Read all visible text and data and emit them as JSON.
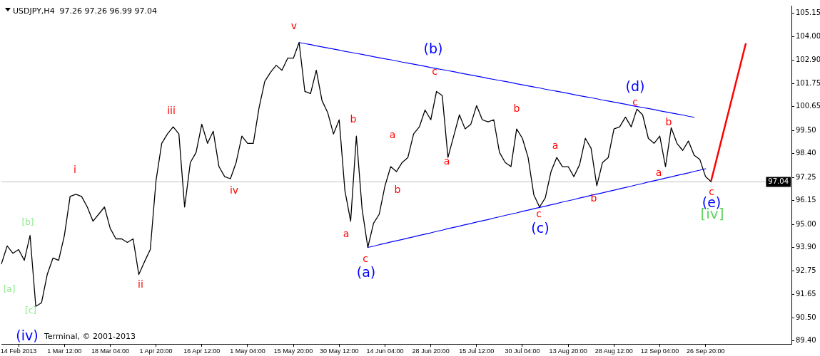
{
  "chart_data": {
    "type": "line",
    "title": "USDJPY,H4  97.26 97.26 96.99 97.04",
    "categories": [
      null,
      null,
      null,
      "14 Feb 2013",
      null,
      null,
      null,
      null,
      null,
      null,
      null,
      "1 Mar 12:00",
      null,
      null,
      null,
      null,
      null,
      null,
      null,
      "18 Mar 04:00",
      null,
      null,
      null,
      null,
      null,
      null,
      null,
      "1 Apr 20:00",
      null,
      null,
      null,
      null,
      null,
      null,
      null,
      "16 Apr 12:00",
      null,
      null,
      null,
      null,
      null,
      null,
      null,
      "1 May 04:00",
      null,
      null,
      null,
      null,
      null,
      null,
      null,
      "15 May 20:00",
      null,
      null,
      null,
      null,
      null,
      null,
      null,
      "30 May 12:00",
      null,
      null,
      null,
      null,
      null,
      null,
      null,
      "14 Jun 04:00",
      null,
      null,
      null,
      null,
      null,
      null,
      null,
      "28 Jun 20:00",
      null,
      null,
      null,
      null,
      null,
      null,
      null,
      "15 Jul 12:00",
      null,
      null,
      null,
      null,
      null,
      null,
      null,
      "30 Jul 04:00",
      null,
      null,
      null,
      null,
      null,
      null,
      null,
      "13 Aug 20:00",
      null,
      null,
      null,
      null,
      null,
      null,
      null,
      "28 Aug 12:00",
      null,
      null,
      null,
      null,
      null,
      null,
      null,
      "12 Sep 04:00",
      null,
      null,
      null,
      null,
      null,
      null,
      null,
      "26 Sep 20:00",
      null,
      null,
      null,
      null,
      null,
      null,
      null,
      null,
      null,
      null,
      null,
      null,
      null,
      null,
      null
    ],
    "ylim": [
      89.25,
      105.5
    ],
    "yticks": [
      {
        "value": 89.4,
        "label": "89.40"
      },
      {
        "value": 90.5,
        "label": "90.50"
      },
      91.65,
      92.75,
      {
        "value": 93.9,
        "label": "93.90"
      },
      {
        "value": 95,
        "label": "95.00"
      },
      96.15,
      97.25,
      {
        "value": 98.4,
        "label": "98.40"
      },
      {
        "value": 99.5,
        "label": "99.50"
      },
      100.65,
      101.75,
      {
        "value": 102.9,
        "label": "102.90"
      },
      {
        "value": 104,
        "label": "104.00"
      },
      105.15
    ],
    "grid": false,
    "legend": false,
    "marker": "none",
    "line_style": "solid",
    "ref_lines": [
      {
        "axis": "y",
        "value": 97.04,
        "label": "97.04",
        "color": "#c0c0c0"
      }
    ],
    "series": [
      {
        "color": "#000000",
        "values": [
          93.1,
          93.96,
          93.61,
          93.79,
          93.27,
          94.47,
          91.06,
          91.23,
          92.59,
          93.38,
          93.27,
          94.47,
          96.34,
          96.44,
          96.34,
          95.83,
          95.15,
          95.49,
          95.83,
          94.81,
          94.3,
          94.3,
          94.13,
          94.3,
          92.59,
          93.21,
          93.79,
          97.09,
          98.89,
          99.34,
          99.68,
          99.34,
          95.83,
          97.97,
          98.45,
          99.81,
          98.89,
          99.47,
          97.77,
          97.29,
          97.19,
          97.97,
          99.24,
          98.89,
          98.89,
          100.6,
          101.86,
          102.3,
          102.64,
          102.4,
          102.98,
          102.98,
          103.73,
          101.38,
          101.28,
          102.4,
          100.94,
          100.36,
          99.34,
          100.02,
          96.61,
          95.15,
          99.24,
          95.73,
          93.89,
          95.05,
          95.49,
          96.85,
          97.77,
          97.53,
          97.97,
          98.21,
          99.34,
          99.68,
          100.49,
          100.02,
          101.38,
          101.18,
          98.21,
          99.24,
          100.26,
          99.58,
          99.81,
          100.7,
          100.02,
          99.92,
          100.02,
          98.45,
          97.97,
          97.77,
          99.58,
          99.13,
          98.21,
          96.41,
          95.83,
          96.27,
          97.53,
          98.21,
          97.77,
          97.77,
          97.29,
          97.87,
          99.13,
          98.65,
          96.85,
          97.97,
          98.21,
          99.58,
          99.68,
          100.15,
          99.68,
          100.53,
          100.26,
          99.13,
          98.89,
          99.24,
          97.77,
          99.64,
          98.89,
          98.55,
          99.0,
          98.32,
          98.11,
          97.29,
          97.04,
          null,
          null,
          null,
          null,
          null,
          null,
          null,
          null,
          null,
          null,
          null,
          null,
          null,
          null
        ]
      },
      {
        "color": "#0000ff",
        "values": [
          null,
          null,
          null,
          null,
          null,
          null,
          null,
          null,
          null,
          null,
          null,
          null,
          null,
          null,
          null,
          null,
          null,
          null,
          null,
          null,
          null,
          null,
          null,
          null,
          null,
          null,
          null,
          null,
          null,
          null,
          null,
          null,
          null,
          null,
          null,
          null,
          null,
          null,
          null,
          null,
          null,
          null,
          null,
          null,
          null,
          null,
          null,
          null,
          null,
          null,
          null,
          null,
          103.73,
          103.68,
          103.63,
          103.57,
          103.52,
          103.47,
          103.42,
          103.37,
          103.31,
          103.26,
          103.21,
          103.16,
          103.11,
          103.05,
          103.0,
          102.95,
          102.9,
          102.85,
          102.79,
          102.74,
          102.69,
          102.64,
          102.59,
          102.53,
          102.48,
          102.43,
          102.38,
          102.33,
          102.27,
          102.22,
          102.17,
          102.12,
          102.07,
          102.01,
          101.96,
          101.91,
          101.86,
          101.81,
          101.75,
          101.7,
          101.65,
          101.6,
          101.55,
          101.49,
          101.44,
          101.39,
          101.34,
          101.29,
          101.23,
          101.18,
          101.13,
          101.08,
          101.03,
          100.97,
          100.92,
          100.87,
          100.82,
          100.77,
          100.71,
          100.66,
          100.61,
          100.56,
          100.51,
          100.45,
          100.4,
          100.35,
          100.3,
          100.25,
          100.19,
          100.14,
          null,
          null,
          null,
          null,
          null,
          null,
          null,
          null,
          null,
          null,
          null,
          null,
          null,
          null,
          null,
          null,
          null
        ]
      },
      {
        "color": "#0000ff",
        "values": [
          null,
          null,
          null,
          null,
          null,
          null,
          null,
          null,
          null,
          null,
          null,
          null,
          null,
          null,
          null,
          null,
          null,
          null,
          null,
          null,
          null,
          null,
          null,
          null,
          null,
          null,
          null,
          null,
          null,
          null,
          null,
          null,
          null,
          null,
          null,
          null,
          null,
          null,
          null,
          null,
          null,
          null,
          null,
          null,
          null,
          null,
          null,
          null,
          null,
          null,
          null,
          null,
          null,
          null,
          null,
          null,
          null,
          null,
          null,
          null,
          null,
          null,
          null,
          null,
          93.89,
          93.95,
          94.02,
          94.08,
          94.15,
          94.21,
          94.27,
          94.34,
          94.4,
          94.47,
          94.53,
          94.59,
          94.66,
          94.72,
          94.79,
          94.85,
          94.91,
          94.98,
          95.04,
          95.11,
          95.17,
          95.23,
          95.3,
          95.36,
          95.43,
          95.49,
          95.55,
          95.62,
          95.68,
          95.75,
          95.81,
          95.87,
          95.94,
          96.0,
          96.07,
          96.13,
          96.19,
          96.26,
          96.32,
          96.39,
          96.45,
          96.51,
          96.58,
          96.64,
          96.71,
          96.77,
          96.83,
          96.9,
          96.96,
          97.03,
          97.09,
          97.15,
          97.22,
          97.28,
          97.35,
          97.41,
          97.47,
          97.54,
          97.6,
          97.67,
          null,
          null,
          null,
          null,
          null,
          null,
          null,
          null,
          null,
          null,
          null,
          null,
          null,
          null,
          null
        ]
      },
      {
        "color": "#ff0000",
        "values": [
          null,
          null,
          null,
          null,
          null,
          null,
          null,
          null,
          null,
          null,
          null,
          null,
          null,
          null,
          null,
          null,
          null,
          null,
          null,
          null,
          null,
          null,
          null,
          null,
          null,
          null,
          null,
          null,
          null,
          null,
          null,
          null,
          null,
          null,
          null,
          null,
          null,
          null,
          null,
          null,
          null,
          null,
          null,
          null,
          null,
          null,
          null,
          null,
          null,
          null,
          null,
          null,
          null,
          null,
          null,
          null,
          null,
          null,
          null,
          null,
          null,
          null,
          null,
          null,
          null,
          null,
          null,
          null,
          null,
          null,
          null,
          null,
          null,
          null,
          null,
          null,
          null,
          null,
          null,
          null,
          null,
          null,
          null,
          null,
          null,
          null,
          null,
          null,
          null,
          null,
          null,
          null,
          null,
          null,
          null,
          null,
          null,
          null,
          null,
          null,
          null,
          null,
          null,
          null,
          null,
          null,
          null,
          null,
          null,
          null,
          null,
          null,
          null,
          null,
          null,
          null,
          null,
          null,
          null,
          null,
          null,
          null,
          null,
          null,
          97.12,
          98.21,
          99.3,
          100.39,
          101.48,
          102.57,
          103.66,
          null,
          null,
          null,
          null,
          null,
          null,
          null,
          null
        ]
      }
    ],
    "annotations": [
      "Terminal, © 2001-2013",
      "[a]",
      "[b]",
      "[c]",
      "(iv)",
      "i",
      "ii",
      "iii",
      "iv",
      "v",
      "a",
      "b",
      "c",
      "(a)",
      "a",
      "b",
      "(b)",
      "c",
      "a",
      "b",
      "c",
      "(c)",
      "a",
      "b",
      "(d)",
      "c",
      "a",
      "b",
      "c",
      "(e)",
      "[iv]"
    ]
  }
}
